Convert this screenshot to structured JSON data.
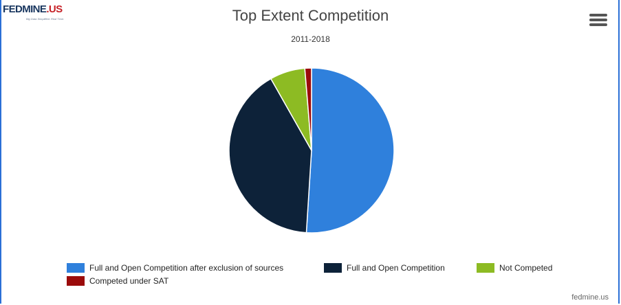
{
  "logo": {
    "main": "FEDMINE",
    "suffix": ".US",
    "tagline": "Big Data Simplified. Real Time."
  },
  "header": {
    "menu_icon": "hamburger-menu-icon"
  },
  "chart_data": {
    "type": "pie",
    "title": "Top Extent Competition",
    "subtitle": "2011-2018",
    "slices": [
      {
        "label": "Full and Open Competition after exclusion of sources",
        "value": 51.0,
        "color": "#2f80dc"
      },
      {
        "label": "Full and Open Competition",
        "value": 40.8,
        "color": "#0d2239"
      },
      {
        "label": "Not Competed",
        "value": 6.9,
        "color": "#8dbb23"
      },
      {
        "label": "Competed under SAT",
        "value": 1.3,
        "color": "#9b0b0b"
      }
    ],
    "legend_position": "bottom"
  },
  "credit": "fedmine.us"
}
